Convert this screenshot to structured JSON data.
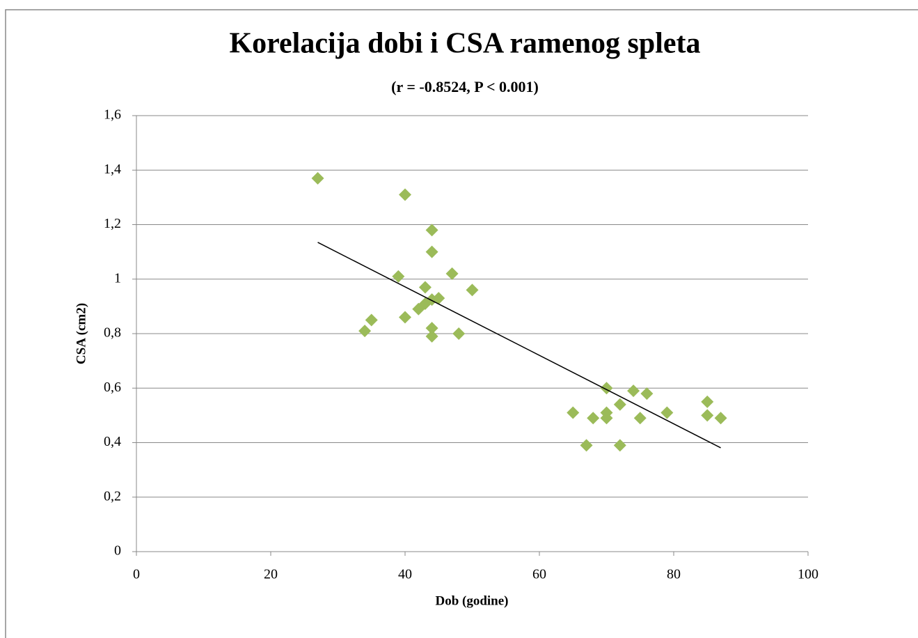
{
  "chart_data": {
    "type": "scatter",
    "title": "Korelacija dobi i CSA ramenog spleta",
    "subtitle": "(r = -0.8524, P < 0.001)",
    "x_label": "Dob (godine)",
    "y_label": "CSA (cm2)",
    "color": "#9bbb59",
    "grid": true,
    "x": [
      27,
      40,
      44,
      44,
      39,
      47,
      50,
      43,
      45,
      44,
      43,
      42,
      40,
      35,
      34,
      44,
      44,
      48,
      70,
      74,
      76,
      72,
      65,
      70,
      68,
      70,
      75,
      79,
      85,
      85,
      87,
      67,
      72
    ],
    "values": [
      1.37,
      1.31,
      1.18,
      1.1,
      1.01,
      1.02,
      0.96,
      0.97,
      0.93,
      0.925,
      0.91,
      0.89,
      0.86,
      0.85,
      0.81,
      0.82,
      0.79,
      0.8,
      0.6,
      0.59,
      0.58,
      0.54,
      0.51,
      0.51,
      0.49,
      0.49,
      0.49,
      0.51,
      0.55,
      0.5,
      0.49,
      0.39,
      0.39
    ],
    "trendline": {
      "x": [
        27,
        87
      ],
      "y": [
        1.135,
        0.381
      ],
      "color": "#000000"
    },
    "xlim": [
      0,
      100
    ],
    "xticks": [
      0,
      20,
      40,
      60,
      80,
      100
    ],
    "ylim": [
      0,
      1.6
    ],
    "yticks": [
      0,
      {
        "value": 0.2,
        "label": "0,2"
      },
      {
        "value": 0.4,
        "label": "0,4"
      },
      {
        "value": 0.6,
        "label": "0,6"
      },
      {
        "value": 0.8,
        "label": "0,8"
      },
      1,
      {
        "value": 1.2,
        "label": "1,2"
      },
      {
        "value": 1.4,
        "label": "1,4"
      },
      {
        "value": 1.6,
        "label": "1,6"
      }
    ]
  }
}
